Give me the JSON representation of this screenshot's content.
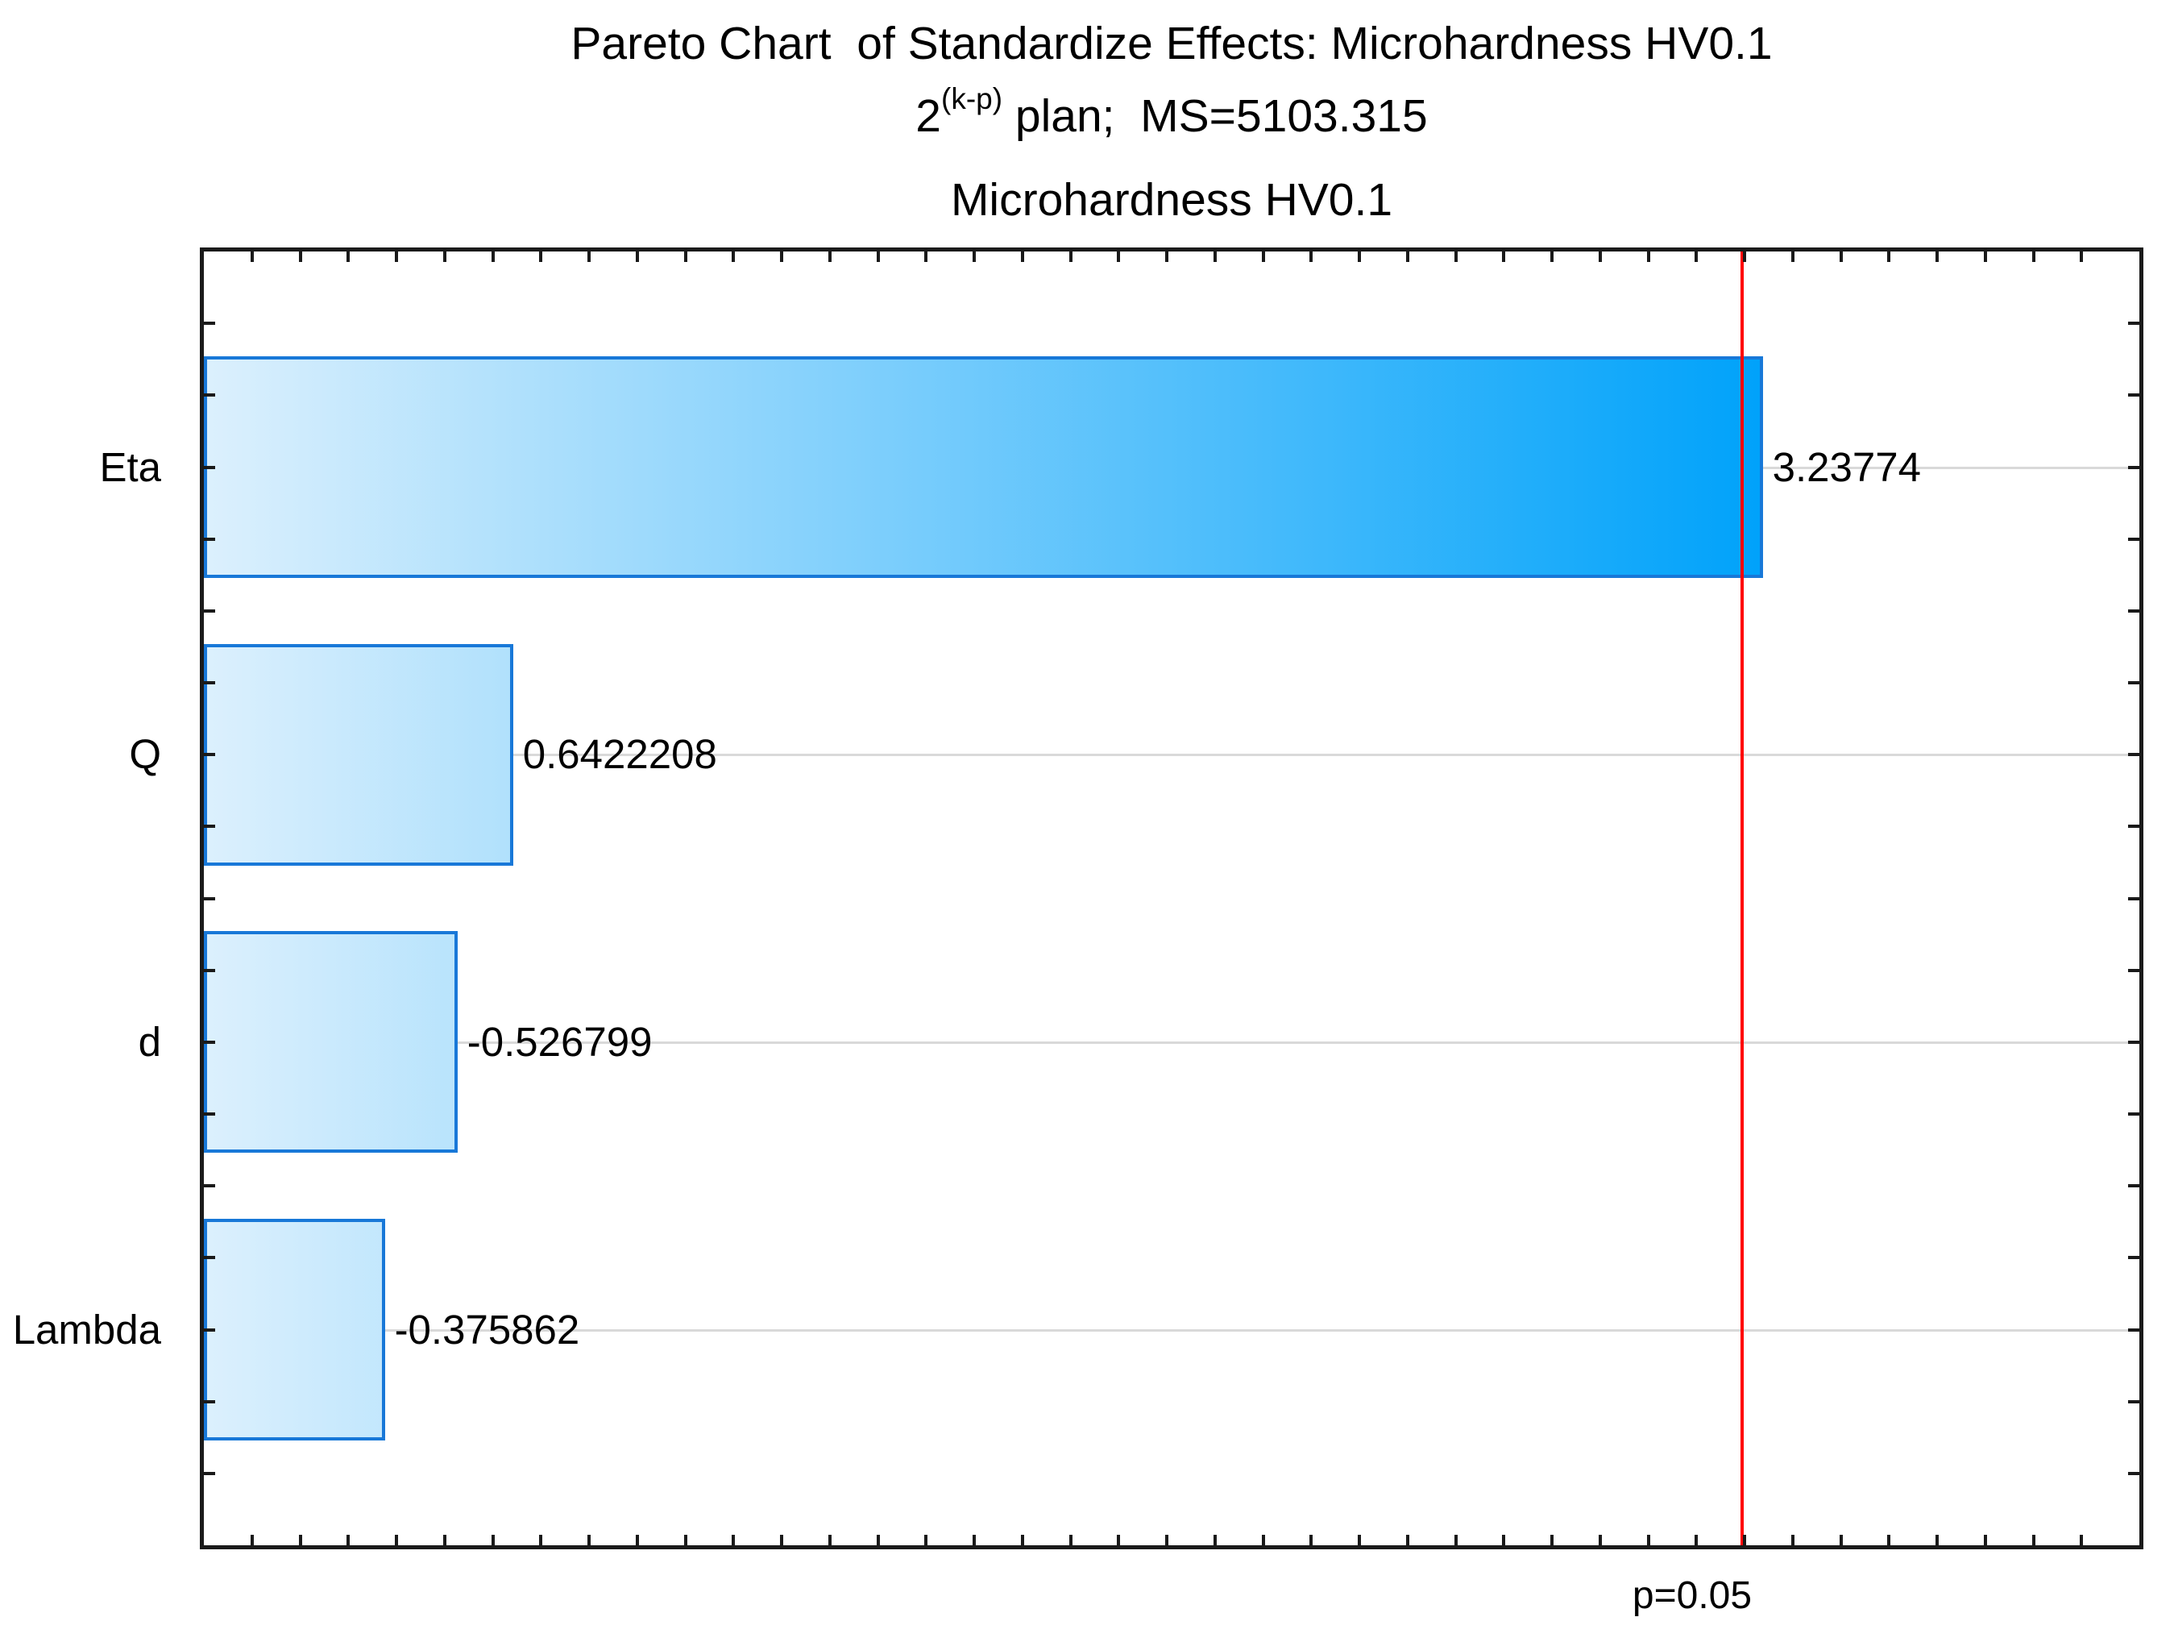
{
  "title": {
    "line1": "Pareto Chart  of Standardize Effects: Microhardness HV0.1",
    "line2_base": "2",
    "line2_superscript": "(k-p)",
    "line2_rest": " plan;  MS=5103.315",
    "line3": "Microhardness HV0.1"
  },
  "chart_data": {
    "type": "bar",
    "orientation": "horizontal",
    "title": "Pareto Chart of Standardize Effects: Microhardness HV0.1",
    "subtitle": "2^(k-p) plan;  MS=5103.315",
    "subtitle2": "Microhardness HV0.1",
    "categories": [
      "Eta",
      "Q",
      "d",
      "Lambda"
    ],
    "values": [
      3.23774,
      0.6422208,
      -0.526799,
      -0.375862
    ],
    "value_labels": [
      "3.23774",
      "0.6422208",
      "-0.526799",
      "-0.375862"
    ],
    "bar_metric": "absolute standardized effect estimate (t-value)",
    "xlabel": "",
    "ylabel": "",
    "xlim": [
      0,
      4.02
    ],
    "x_minor_tick_step": 0.1,
    "y_axis_minor_divisions": 18,
    "grid": "light horizontal gridline through each bar center",
    "legend_position": "none",
    "reference_line": {
      "label": "p=0.05",
      "value": 3.195,
      "color": "#ff0000"
    }
  },
  "colors": {
    "background": "#ffffff",
    "bar_gradient_start": "#dcf0fd",
    "bar_gradient_end": "#00a2fa",
    "bar_border": "#1878d8",
    "reference_line": "#ff0000",
    "frame": "#1a1a1a",
    "gridline": "#d9d9d9",
    "text": "#000000"
  }
}
